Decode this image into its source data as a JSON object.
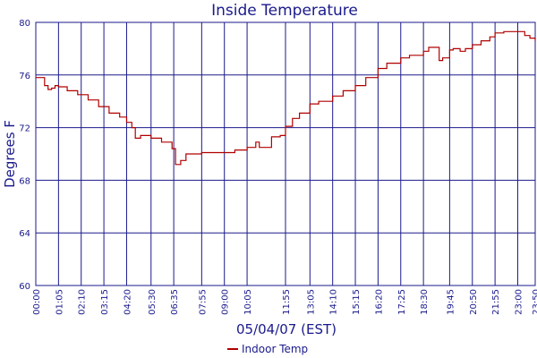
{
  "chart_data": {
    "type": "line",
    "title": "Inside Temperature",
    "xlabel": "05/04/07 (EST)",
    "ylabel": "Degrees F",
    "ylim": [
      60,
      80
    ],
    "yticks": [
      60,
      64,
      68,
      72,
      76,
      80
    ],
    "xlim": [
      "00:00",
      "23:50"
    ],
    "xticks": [
      "00:00",
      "01:05",
      "02:10",
      "03:15",
      "04:20",
      "05:30",
      "06:35",
      "07:55",
      "09:00",
      "10:05",
      "11:55",
      "13:05",
      "14:10",
      "15:15",
      "16:20",
      "17:25",
      "18:30",
      "19:45",
      "20:50",
      "21:55",
      "23:00",
      "23:50"
    ],
    "grid": true,
    "legend_position": "bottom",
    "series": [
      {
        "name": "Indoor Temp",
        "color": "#b00000",
        "points": [
          [
            "00:00",
            75.8
          ],
          [
            "00:15",
            75.8
          ],
          [
            "00:25",
            75.2
          ],
          [
            "00:35",
            74.9
          ],
          [
            "00:45",
            75.0
          ],
          [
            "00:55",
            75.2
          ],
          [
            "01:05",
            75.1
          ],
          [
            "01:30",
            74.8
          ],
          [
            "02:00",
            74.5
          ],
          [
            "02:30",
            74.1
          ],
          [
            "03:00",
            73.6
          ],
          [
            "03:30",
            73.1
          ],
          [
            "04:00",
            72.8
          ],
          [
            "04:20",
            72.4
          ],
          [
            "04:35",
            72.0
          ],
          [
            "04:45",
            71.2
          ],
          [
            "05:00",
            71.4
          ],
          [
            "05:30",
            71.2
          ],
          [
            "06:00",
            70.9
          ],
          [
            "06:30",
            70.4
          ],
          [
            "06:40",
            69.2
          ],
          [
            "06:55",
            69.5
          ],
          [
            "07:10",
            70.0
          ],
          [
            "07:55",
            70.1
          ],
          [
            "09:00",
            70.1
          ],
          [
            "09:30",
            70.3
          ],
          [
            "10:05",
            70.5
          ],
          [
            "10:30",
            70.9
          ],
          [
            "10:40",
            70.5
          ],
          [
            "11:05",
            70.5
          ],
          [
            "11:15",
            71.3
          ],
          [
            "11:40",
            71.4
          ],
          [
            "11:55",
            72.1
          ],
          [
            "12:15",
            72.7
          ],
          [
            "12:35",
            73.1
          ],
          [
            "13:05",
            73.8
          ],
          [
            "13:30",
            74.0
          ],
          [
            "14:10",
            74.4
          ],
          [
            "14:40",
            74.8
          ],
          [
            "15:15",
            75.2
          ],
          [
            "15:45",
            75.8
          ],
          [
            "16:20",
            76.5
          ],
          [
            "16:45",
            76.9
          ],
          [
            "17:25",
            77.3
          ],
          [
            "17:50",
            77.5
          ],
          [
            "18:30",
            77.8
          ],
          [
            "18:45",
            78.1
          ],
          [
            "19:05",
            78.1
          ],
          [
            "19:15",
            77.1
          ],
          [
            "19:25",
            77.3
          ],
          [
            "19:45",
            77.9
          ],
          [
            "19:55",
            78.0
          ],
          [
            "20:15",
            77.8
          ],
          [
            "20:30",
            78.0
          ],
          [
            "20:50",
            78.3
          ],
          [
            "21:15",
            78.6
          ],
          [
            "21:40",
            78.9
          ],
          [
            "21:55",
            79.2
          ],
          [
            "22:20",
            79.3
          ],
          [
            "23:00",
            79.3
          ],
          [
            "23:20",
            79.0
          ],
          [
            "23:35",
            78.8
          ],
          [
            "23:50",
            78.6
          ]
        ]
      }
    ]
  }
}
